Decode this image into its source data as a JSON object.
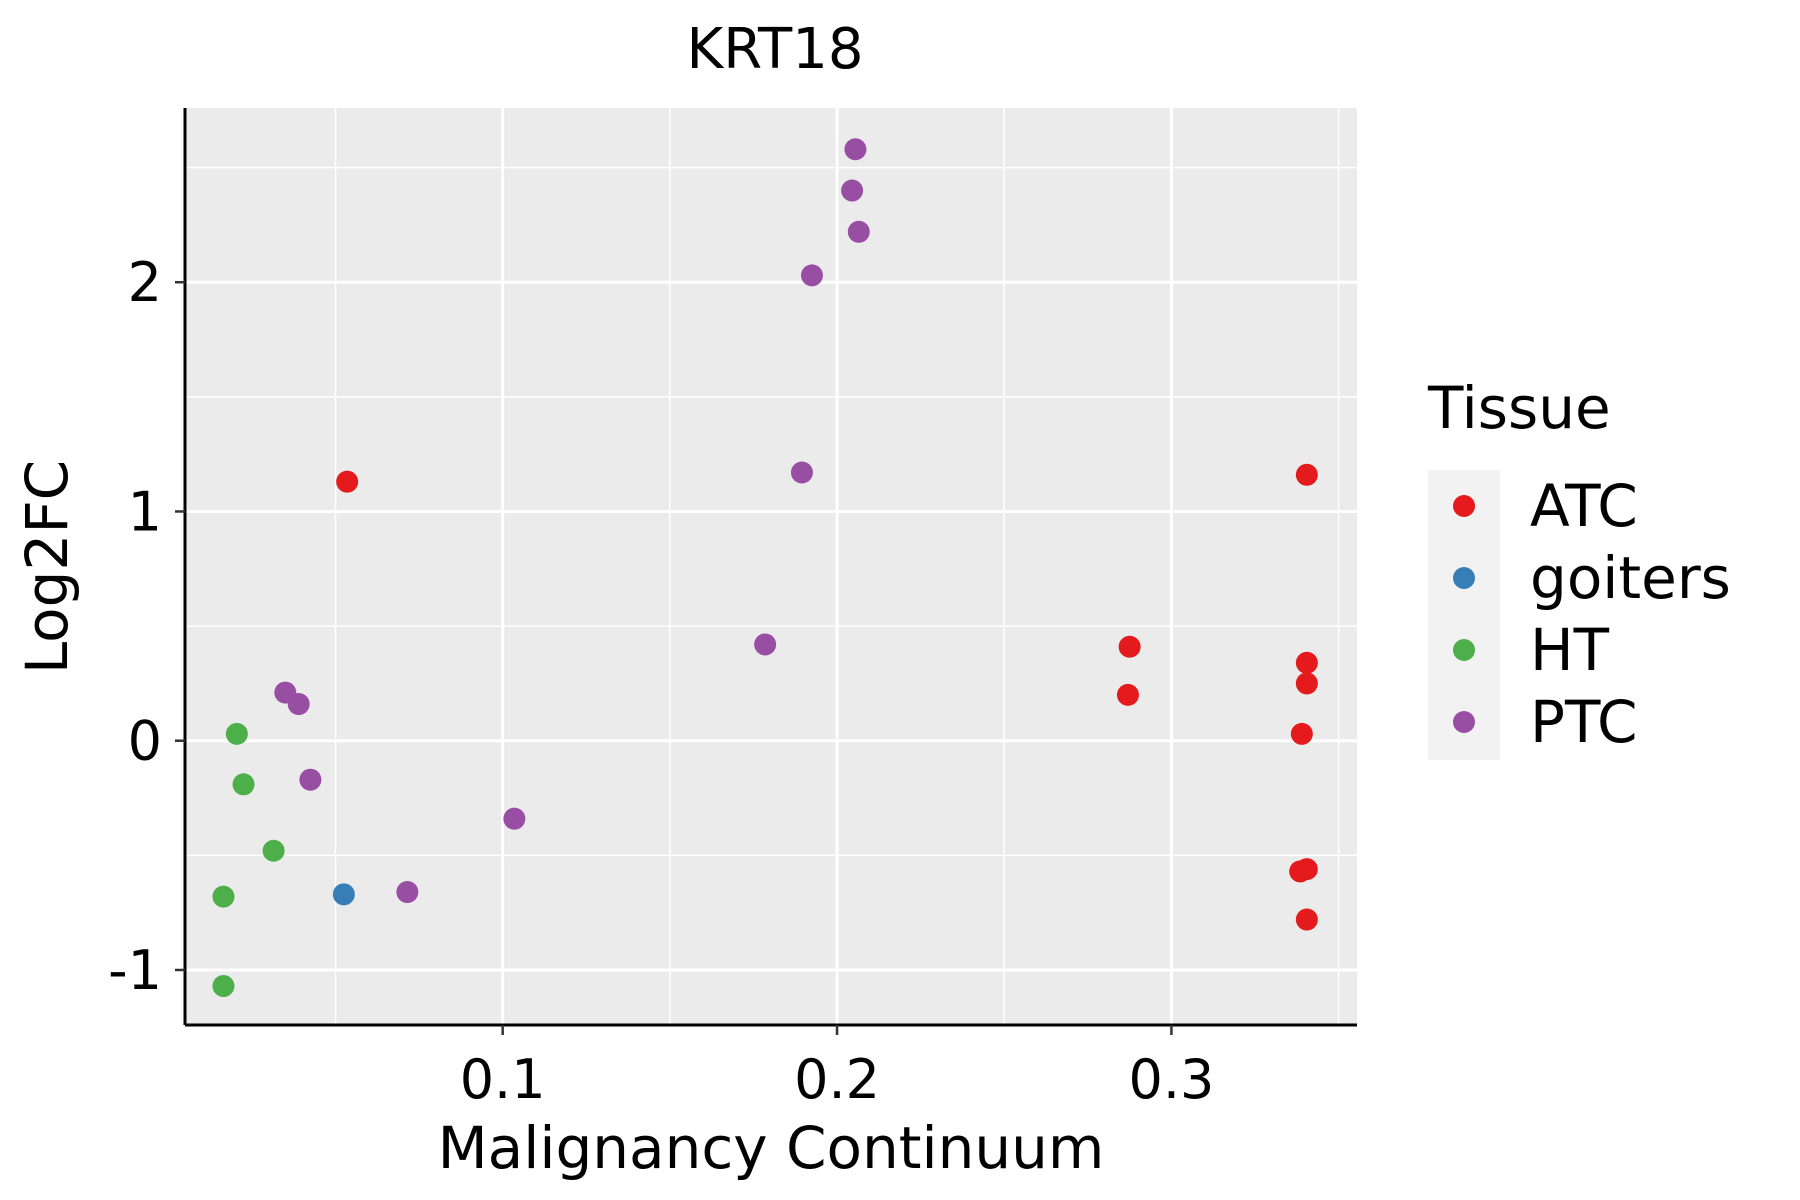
{
  "chart_data": {
    "type": "scatter",
    "title": "KRT18",
    "xlabel": "Malignancy Continuum",
    "ylabel": "Log2FC",
    "xlim": [
      0.005,
      0.3555
    ],
    "ylim": [
      -1.24,
      2.76
    ],
    "x_ticks": [
      {
        "value": 0.1,
        "label": "0.1"
      },
      {
        "value": 0.2,
        "label": "0.2"
      },
      {
        "value": 0.3,
        "label": "0.3"
      }
    ],
    "y_ticks": [
      {
        "value": -1,
        "label": "-1"
      },
      {
        "value": 0,
        "label": "0"
      },
      {
        "value": 1,
        "label": "1"
      },
      {
        "value": 2,
        "label": "2"
      }
    ],
    "grid": true,
    "legend": {
      "title": "Tissue",
      "position": "right",
      "entries": [
        "ATC",
        "goiters",
        "HT",
        "PTC"
      ]
    },
    "colors": {
      "ATC": "#e41a1c",
      "goiters": "#377eb8",
      "HT": "#4daf4a",
      "PTC": "#984ea3"
    },
    "series": [
      {
        "name": "ATC",
        "points": [
          [
            0.0535,
            1.13
          ],
          [
            0.2875,
            0.41
          ],
          [
            0.287,
            0.2
          ],
          [
            0.3405,
            1.16
          ],
          [
            0.3405,
            0.34
          ],
          [
            0.3405,
            0.25
          ],
          [
            0.339,
            0.03
          ],
          [
            0.3385,
            -0.57
          ],
          [
            0.3405,
            -0.56
          ],
          [
            0.3405,
            -0.78
          ]
        ]
      },
      {
        "name": "goiters",
        "points": [
          [
            0.0525,
            -0.67
          ]
        ]
      },
      {
        "name": "HT",
        "points": [
          [
            0.0205,
            0.03
          ],
          [
            0.0225,
            -0.19
          ],
          [
            0.0315,
            -0.48
          ],
          [
            0.0165,
            -0.68
          ],
          [
            0.0165,
            -1.07
          ]
        ]
      },
      {
        "name": "PTC",
        "points": [
          [
            0.2055,
            2.58
          ],
          [
            0.2045,
            2.4
          ],
          [
            0.2065,
            2.22
          ],
          [
            0.1925,
            2.03
          ],
          [
            0.1895,
            1.17
          ],
          [
            0.1785,
            0.42
          ],
          [
            0.035,
            0.21
          ],
          [
            0.039,
            0.16
          ],
          [
            0.0425,
            -0.17
          ],
          [
            0.1035,
            -0.34
          ],
          [
            0.0715,
            -0.66
          ]
        ]
      }
    ]
  }
}
